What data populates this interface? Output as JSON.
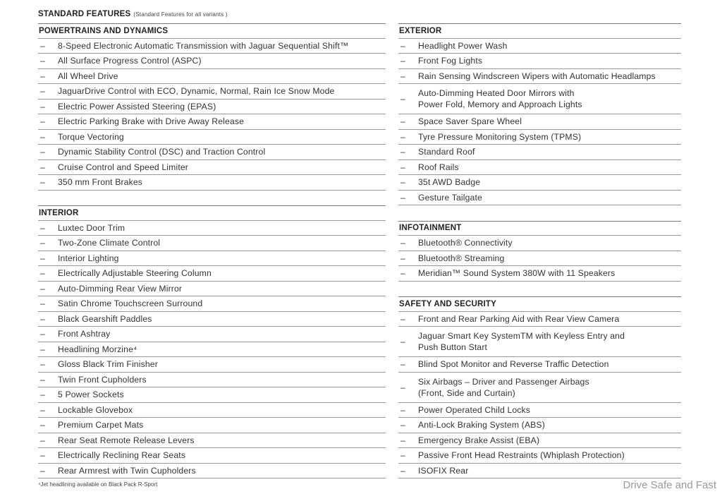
{
  "title": "STANDARD FEATURES",
  "subtitle": "(Standard Features for all variants )",
  "left": [
    {
      "heading": "POWERTRAINS AND DYNAMICS",
      "items": [
        "8-Speed Electronic Automatic Transmission with Jaguar Sequential Shift™",
        "All Surface Progress Control (ASPC)",
        "All Wheel Drive",
        "JaguarDrive Control with ECO, Dynamic, Normal, Rain Ice Snow Mode",
        "Electric Power Assisted Steering (EPAS)",
        "Electric Parking Brake with Drive Away Release",
        "Torque Vectoring",
        "Dynamic Stability Control (DSC) and Traction Control",
        "Cruise Control and Speed Limiter",
        "350 mm Front Brakes"
      ]
    },
    {
      "heading": "INTERIOR",
      "items": [
        "Luxtec Door Trim",
        "Two-Zone Climate Control",
        "Interior Lighting",
        "Electrically Adjustable Steering Column",
        "Auto-Dimming Rear View Mirror",
        "Satin Chrome Touchscreen Surround",
        "Black Gearshift Paddles",
        "Front Ashtray",
        "Headlining Morzine⁴",
        "Gloss Black Trim Finisher",
        "Twin Front Cupholders",
        "5 Power Sockets",
        "Lockable Glovebox",
        "Premium Carpet Mats",
        "Rear Seat Remote Release Levers",
        "Electrically Reclining Rear Seats",
        "Rear Armrest with Twin Cupholders"
      ]
    }
  ],
  "right": [
    {
      "heading": "EXTERIOR",
      "items": [
        "Headlight Power Wash",
        "Front Fog Lights",
        "Rain Sensing Windscreen Wipers with Automatic Headlamps",
        "Auto-Dimming Heated Door Mirrors with\nPower Fold, Memory and Approach Lights",
        "Space Saver Spare Wheel",
        "Tyre Pressure Monitoring System (TPMS)",
        "Standard Roof",
        "Roof Rails",
        "35t AWD Badge",
        "Gesture Tailgate"
      ]
    },
    {
      "heading": "INFOTAINMENT",
      "items": [
        "Bluetooth® Connectivity",
        "Bluetooth® Streaming",
        "Meridian™ Sound System 380W with 11 Speakers"
      ]
    },
    {
      "heading": "SAFETY AND SECURITY",
      "items": [
        "Front and Rear Parking Aid with Rear View Camera",
        "Jaguar Smart Key SystemTM with Keyless Entry and\nPush Button Start",
        "Blind Spot Monitor and Reverse Traffic Detection",
        "Six Airbags – Driver and Passenger Airbags\n(Front, Side and Curtain)",
        "Power Operated Child Locks",
        "Anti-Lock Braking System (ABS)",
        "Emergency Brake Assist (EBA)",
        "Passive Front Head Restraints (Whiplash Protection)",
        "ISOFIX Rear"
      ]
    }
  ],
  "bullet": "–",
  "footnote": "⁴Jet headlining available on Black Pack R-Sport",
  "watermark": "Drive Safe and Fast"
}
